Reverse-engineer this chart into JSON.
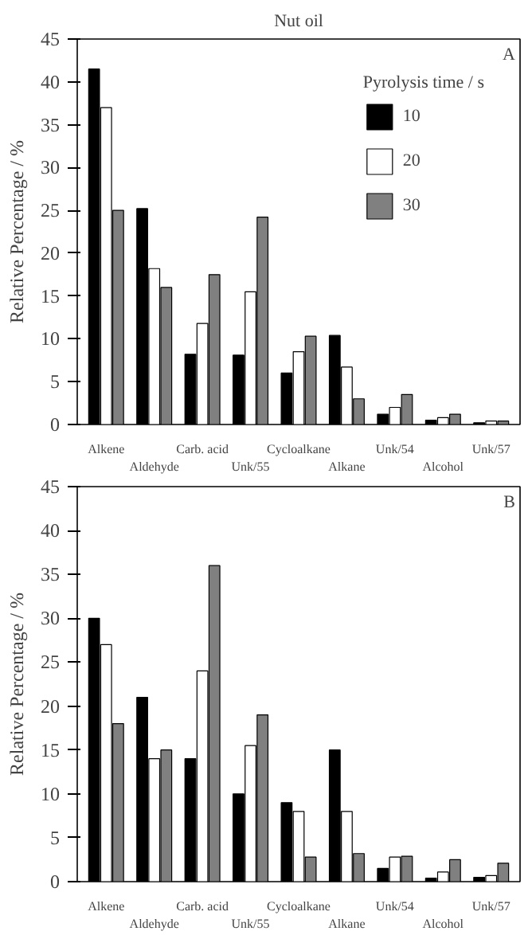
{
  "chart_data": [
    {
      "type": "bar",
      "title": "Nut oil",
      "ylabel": "Relative Percentage / %",
      "legend_title": "Pyrolysis time / s",
      "legend": "top right",
      "grid": false,
      "annotations": [
        "A"
      ],
      "categories": [
        "Alkene",
        "Aldehyde",
        "Carb. acid",
        "Unk/55",
        "Cycloalkane",
        "Alkane",
        "Unk/54",
        "Alcohol",
        "Unk/57"
      ],
      "ylim": [
        0,
        45
      ],
      "yticks": [
        0,
        5,
        10,
        15,
        20,
        25,
        30,
        35,
        40,
        45
      ],
      "series": [
        {
          "name": "10",
          "color": "#000000",
          "values": [
            41.5,
            25.2,
            8.2,
            8.1,
            6,
            10.4,
            1.2,
            0.5,
            0.2
          ]
        },
        {
          "name": "20",
          "color": "#ffffff",
          "values": [
            37,
            18.2,
            11.8,
            15.5,
            8.5,
            6.7,
            2,
            0.8,
            0.4
          ]
        },
        {
          "name": "30",
          "color": "#808080",
          "values": [
            25,
            16,
            17.5,
            24.2,
            10.3,
            3,
            3.5,
            1.2,
            0.4
          ]
        }
      ]
    },
    {
      "type": "bar",
      "ylabel": "Relative Percentage / %",
      "grid": false,
      "annotations": [
        "B"
      ],
      "categories": [
        "Alkene",
        "Aldehyde",
        "Carb. acid",
        "Unk/55",
        "Cycloalkane",
        "Alkane",
        "Unk/54",
        "Alcohol",
        "Unk/57"
      ],
      "ylim": [
        0,
        45
      ],
      "yticks": [
        0,
        5,
        10,
        15,
        20,
        25,
        30,
        35,
        40,
        45
      ],
      "series": [
        {
          "color": "#000000",
          "values": [
            30,
            21,
            14,
            10,
            9,
            15,
            1.5,
            0.4,
            0.5
          ]
        },
        {
          "color": "#ffffff",
          "values": [
            27,
            14,
            24,
            15.5,
            8,
            8,
            2.8,
            1.1,
            0.7
          ]
        },
        {
          "color": "#808080",
          "values": [
            18,
            15,
            36,
            19,
            2.8,
            3.2,
            2.9,
            2.5,
            2.1
          ]
        }
      ]
    }
  ]
}
